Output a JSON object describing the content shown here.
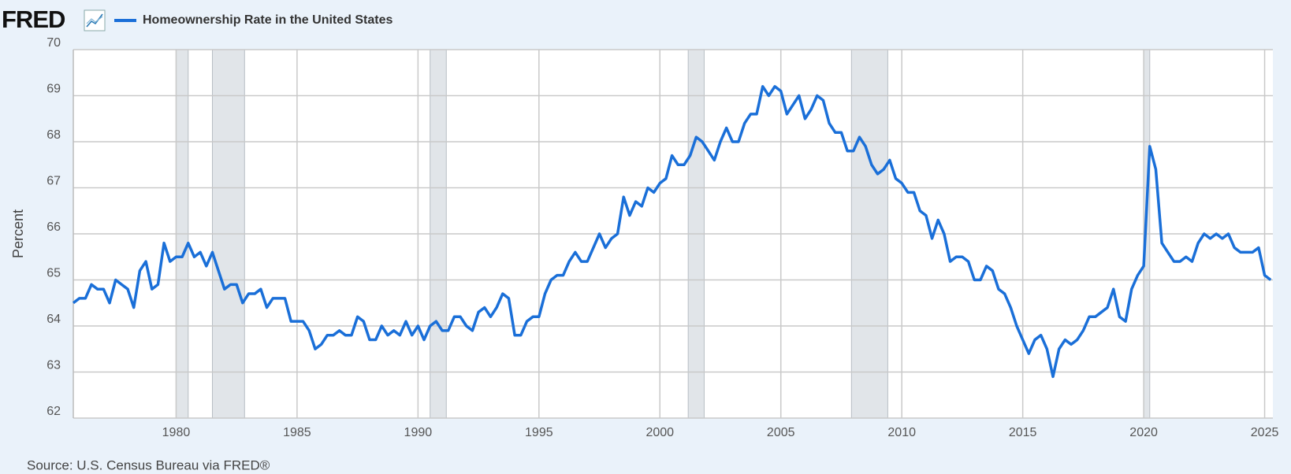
{
  "logo": "FRED",
  "chart_data": {
    "type": "line",
    "ylabel": "Percent",
    "source": "Source: U.S. Census Bureau via FRED®",
    "x": [
      1975.75,
      1976,
      1976.25,
      1976.5,
      1976.75,
      1977,
      1977.25,
      1977.5,
      1977.75,
      1978,
      1978.25,
      1978.5,
      1978.75,
      1979,
      1979.25,
      1979.5,
      1979.75,
      1980,
      1980.25,
      1980.5,
      1980.75,
      1981,
      1981.25,
      1981.5,
      1981.75,
      1982,
      1982.25,
      1982.5,
      1982.75,
      1983,
      1983.25,
      1983.5,
      1983.75,
      1984,
      1984.25,
      1984.5,
      1984.75,
      1985,
      1985.25,
      1985.5,
      1985.75,
      1986,
      1986.25,
      1986.5,
      1986.75,
      1987,
      1987.25,
      1987.5,
      1987.75,
      1988,
      1988.25,
      1988.5,
      1988.75,
      1989,
      1989.25,
      1989.5,
      1989.75,
      1990,
      1990.25,
      1990.5,
      1990.75,
      1991,
      1991.25,
      1991.5,
      1991.75,
      1992,
      1992.25,
      1992.5,
      1992.75,
      1993,
      1993.25,
      1993.5,
      1993.75,
      1994,
      1994.25,
      1994.5,
      1994.75,
      1995,
      1995.25,
      1995.5,
      1995.75,
      1996,
      1996.25,
      1996.5,
      1996.75,
      1997,
      1997.25,
      1997.5,
      1997.75,
      1998,
      1998.25,
      1998.5,
      1998.75,
      1999,
      1999.25,
      1999.5,
      1999.75,
      2000,
      2000.25,
      2000.5,
      2000.75,
      2001,
      2001.25,
      2001.5,
      2001.75,
      2002,
      2002.25,
      2002.5,
      2002.75,
      2003,
      2003.25,
      2003.5,
      2003.75,
      2004,
      2004.25,
      2004.5,
      2004.75,
      2005,
      2005.25,
      2005.5,
      2005.75,
      2006,
      2006.25,
      2006.5,
      2006.75,
      2007,
      2007.25,
      2007.5,
      2007.75,
      2008,
      2008.25,
      2008.5,
      2008.75,
      2009,
      2009.25,
      2009.5,
      2009.75,
      2010,
      2010.25,
      2010.5,
      2010.75,
      2011,
      2011.25,
      2011.5,
      2011.75,
      2012,
      2012.25,
      2012.5,
      2012.75,
      2013,
      2013.25,
      2013.5,
      2013.75,
      2014,
      2014.25,
      2014.5,
      2014.75,
      2015,
      2015.25,
      2015.5,
      2015.75,
      2016,
      2016.25,
      2016.5,
      2016.75,
      2017,
      2017.25,
      2017.5,
      2017.75,
      2018,
      2018.25,
      2018.5,
      2018.75,
      2019,
      2019.25,
      2019.5,
      2019.75,
      2020,
      2020.25,
      2020.5,
      2020.75,
      2021,
      2021.25,
      2021.5,
      2021.75,
      2022,
      2022.25,
      2022.5,
      2022.75,
      2023,
      2023.25,
      2023.5,
      2023.75,
      2024,
      2024.25,
      2024.5,
      2024.75,
      2025,
      2025.25
    ],
    "series": [
      {
        "name": "Homeownership Rate in the United States",
        "color": "#1a6fd8",
        "values": [
          64.5,
          64.6,
          64.6,
          64.9,
          64.8,
          64.8,
          64.5,
          65.0,
          64.9,
          64.8,
          64.4,
          65.2,
          65.4,
          64.8,
          64.9,
          65.8,
          65.4,
          65.5,
          65.5,
          65.8,
          65.5,
          65.6,
          65.3,
          65.6,
          65.2,
          64.8,
          64.9,
          64.9,
          64.5,
          64.7,
          64.7,
          64.8,
          64.4,
          64.6,
          64.6,
          64.6,
          64.1,
          64.1,
          64.1,
          63.9,
          63.5,
          63.6,
          63.8,
          63.8,
          63.9,
          63.8,
          63.8,
          64.2,
          64.1,
          63.7,
          63.7,
          64.0,
          63.8,
          63.9,
          63.8,
          64.1,
          63.8,
          64.0,
          63.7,
          64.0,
          64.1,
          63.9,
          63.9,
          64.2,
          64.2,
          64.0,
          63.9,
          64.3,
          64.4,
          64.2,
          64.4,
          64.7,
          64.6,
          63.8,
          63.8,
          64.1,
          64.2,
          64.2,
          64.7,
          65.0,
          65.1,
          65.1,
          65.4,
          65.6,
          65.4,
          65.4,
          65.7,
          66.0,
          65.7,
          65.9,
          66.0,
          66.8,
          66.4,
          66.7,
          66.6,
          67.0,
          66.9,
          67.1,
          67.2,
          67.7,
          67.5,
          67.5,
          67.7,
          68.1,
          68.0,
          67.8,
          67.6,
          68.0,
          68.3,
          68.0,
          68.0,
          68.4,
          68.6,
          68.6,
          69.2,
          69.0,
          69.2,
          69.1,
          68.6,
          68.8,
          69.0,
          68.5,
          68.7,
          69.0,
          68.9,
          68.4,
          68.2,
          68.2,
          67.8,
          67.8,
          68.1,
          67.9,
          67.5,
          67.3,
          67.4,
          67.6,
          67.2,
          67.1,
          66.9,
          66.9,
          66.5,
          66.4,
          65.9,
          66.3,
          66.0,
          65.4,
          65.5,
          65.5,
          65.4,
          65.0,
          65.0,
          65.3,
          65.2,
          64.8,
          64.7,
          64.4,
          64.0,
          63.7,
          63.4,
          63.7,
          63.8,
          63.5,
          62.9,
          63.5,
          63.7,
          63.6,
          63.7,
          63.9,
          64.2,
          64.2,
          64.3,
          64.4,
          64.8,
          64.2,
          64.1,
          64.8,
          65.1,
          65.3,
          67.9,
          67.4,
          65.8,
          65.6,
          65.4,
          65.4,
          65.5,
          65.4,
          65.8,
          66.0,
          65.9,
          66.0,
          65.9,
          66.0,
          65.7,
          65.6,
          65.6,
          65.6,
          65.7,
          65.1,
          65.0
        ]
      }
    ],
    "recessions": [
      [
        1980.0,
        1980.5
      ],
      [
        1981.5,
        1982.83
      ],
      [
        1990.5,
        1991.17
      ],
      [
        2001.17,
        2001.83
      ],
      [
        2007.92,
        2009.42
      ],
      [
        2020.0,
        2020.25
      ]
    ],
    "xlim": [
      1975.75,
      2025.34
    ],
    "ylim": [
      62,
      70
    ],
    "xticks": [
      1980,
      1985,
      1990,
      1995,
      2000,
      2005,
      2010,
      2015,
      2020,
      2025
    ],
    "yticks": [
      62,
      63,
      64,
      65,
      66,
      67,
      68,
      69,
      70
    ],
    "grid": true
  }
}
